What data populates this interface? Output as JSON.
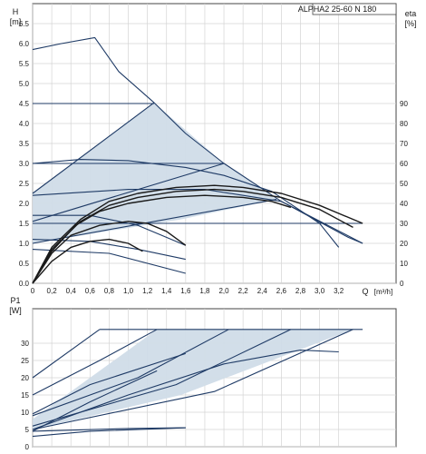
{
  "chart_data": [
    {
      "type": "line",
      "title": "ALPHA2 25-60 N 180",
      "ylabel": "H",
      "yunit": "[m]",
      "y2label": "eta",
      "y2unit": "[%]",
      "xlabel": "Q",
      "xunit": "[m³/h]",
      "xlim": [
        0,
        3.8
      ],
      "ylim": [
        0,
        7.0
      ],
      "y2lim": [
        0,
        100
      ],
      "xticks": [
        "0",
        "0,2",
        "0,4",
        "0,6",
        "0,8",
        "1,0",
        "1,2",
        "1,4",
        "1,6",
        "1,8",
        "2,0",
        "2,2",
        "2,4",
        "2,6",
        "2,8",
        "3,0",
        "3,2"
      ],
      "yticks": [
        "0.0",
        "0.5",
        "1.0",
        "1.5",
        "2.0",
        "2.5",
        "3.0",
        "3.5",
        "4.0",
        "4.5",
        "5.0",
        "5.5",
        "6.0",
        "6.5"
      ],
      "y2ticks": [
        "0",
        "10",
        "20",
        "30",
        "40",
        "50",
        "60",
        "70",
        "80",
        "90"
      ],
      "grid": true,
      "series": [
        {
          "kind": "fill",
          "color": "#d0dce8",
          "x": [
            0,
            1.27,
            2.0,
            2.55,
            1.55,
            0
          ],
          "y": [
            2.25,
            4.52,
            3.0,
            2.1,
            1.6,
            1.0
          ]
        },
        {
          "kind": "line",
          "color": "#1f3b66",
          "x": [
            0,
            0.3,
            0.65,
            0.9,
            1.27,
            1.6,
            2.0,
            2.6,
            3.3,
            3.45
          ],
          "y": [
            5.85,
            6.0,
            6.15,
            5.3,
            4.52,
            3.75,
            3.0,
            2.05,
            1.15,
            1.0
          ]
        },
        {
          "kind": "line",
          "color": "#1f3b66",
          "x": [
            0,
            1.27
          ],
          "y": [
            4.5,
            4.5
          ]
        },
        {
          "kind": "line",
          "color": "#1f3b66",
          "x": [
            0,
            1.27
          ],
          "y": [
            2.25,
            4.52
          ]
        },
        {
          "kind": "line",
          "color": "#1f3b66",
          "x": [
            0,
            2.0
          ],
          "y": [
            1.55,
            3.0
          ]
        },
        {
          "kind": "line",
          "color": "#1f3b66",
          "x": [
            0,
            2.55
          ],
          "y": [
            1.0,
            2.1
          ]
        },
        {
          "kind": "line",
          "color": "#1f3b66",
          "x": [
            0,
            3.45
          ],
          "y": [
            1.5,
            1.5
          ]
        },
        {
          "kind": "line",
          "color": "#1f3b66",
          "x": [
            0,
            2.0
          ],
          "y": [
            3.0,
            3.0
          ]
        },
        {
          "kind": "line",
          "color": "#1f3b66",
          "x": [
            0,
            0.5,
            1.0,
            1.6,
            2.0,
            2.5,
            3.0,
            3.2
          ],
          "y": [
            3.0,
            3.1,
            3.07,
            2.9,
            2.7,
            2.3,
            1.5,
            0.9
          ]
        },
        {
          "kind": "line",
          "color": "#1f3b66",
          "x": [
            0,
            1.0,
            1.8,
            2.6,
            3.45
          ],
          "y": [
            2.2,
            2.35,
            2.35,
            2.05,
            1.0
          ]
        },
        {
          "kind": "line",
          "color": "#1f3b66",
          "x": [
            0,
            0.6,
            1.1,
            1.6
          ],
          "y": [
            1.7,
            1.7,
            1.45,
            0.95
          ]
        },
        {
          "kind": "line",
          "color": "#1f3b66",
          "x": [
            0,
            0.6,
            1.1,
            1.6
          ],
          "y": [
            1.1,
            1.05,
            0.85,
            0.6
          ]
        },
        {
          "kind": "line",
          "color": "#1f3b66",
          "x": [
            0,
            0.8,
            1.6
          ],
          "y": [
            0.85,
            0.75,
            0.25
          ]
        },
        {
          "kind": "line",
          "color": "#1a1a1a",
          "x": [
            0,
            0.2,
            0.5,
            0.8,
            1.1,
            1.5,
            1.9,
            2.2,
            2.6,
            3.0,
            3.45
          ],
          "y": [
            0,
            0.9,
            1.6,
            2.05,
            2.25,
            2.4,
            2.45,
            2.4,
            2.25,
            1.95,
            1.5
          ]
        },
        {
          "kind": "line",
          "color": "#1a1a1a",
          "x": [
            0,
            0.2,
            0.5,
            0.8,
            1.1,
            1.5,
            1.9,
            2.2,
            2.6,
            3.0,
            3.35
          ],
          "y": [
            0,
            0.85,
            1.55,
            1.95,
            2.15,
            2.3,
            2.35,
            2.3,
            2.15,
            1.85,
            1.4
          ]
        },
        {
          "kind": "line",
          "color": "#1a1a1a",
          "x": [
            0,
            0.2,
            0.45,
            0.7,
            1.0,
            1.4,
            1.8,
            2.2,
            2.5,
            2.7
          ],
          "y": [
            0,
            0.8,
            1.45,
            1.8,
            2.0,
            2.15,
            2.2,
            2.15,
            2.05,
            1.9
          ]
        },
        {
          "kind": "line",
          "color": "#1a1a1a",
          "x": [
            0,
            0.2,
            0.4,
            0.7,
            1.0,
            1.2,
            1.4,
            1.6
          ],
          "y": [
            0,
            0.75,
            1.2,
            1.45,
            1.55,
            1.5,
            1.3,
            0.95
          ]
        },
        {
          "kind": "line",
          "color": "#1a1a1a",
          "x": [
            0,
            0.2,
            0.4,
            0.6,
            0.8,
            1.0,
            1.15
          ],
          "y": [
            0,
            0.55,
            0.9,
            1.05,
            1.1,
            1.0,
            0.8
          ]
        }
      ]
    },
    {
      "type": "line",
      "ylabel": "P1",
      "yunit": "[W]",
      "xlim": [
        0,
        3.8
      ],
      "ylim": [
        0,
        40
      ],
      "yticks": [
        "0",
        "5",
        "10",
        "15",
        "20",
        "25",
        "30"
      ],
      "grid": true,
      "series": [
        {
          "kind": "fill",
          "color": "#d0dce8",
          "x": [
            0,
            1.3,
            2.05,
            2.7,
            3.35,
            1.55,
            0
          ],
          "y": [
            8,
            34,
            34,
            34,
            34,
            15,
            5
          ]
        },
        {
          "kind": "line",
          "color": "#1f3b66",
          "x": [
            0.7,
            3.45
          ],
          "y": [
            34,
            34
          ]
        },
        {
          "kind": "line",
          "color": "#1f3b66",
          "x": [
            0,
            0.7
          ],
          "y": [
            20,
            34
          ]
        },
        {
          "kind": "line",
          "color": "#1f3b66",
          "x": [
            0,
            0.7,
            1.3
          ],
          "y": [
            15,
            25,
            34
          ]
        },
        {
          "kind": "line",
          "color": "#1f3b66",
          "x": [
            0,
            1.1,
            2.05
          ],
          "y": [
            9,
            20,
            34
          ]
        },
        {
          "kind": "line",
          "color": "#1f3b66",
          "x": [
            0,
            1.5,
            2.7
          ],
          "y": [
            6,
            18,
            34
          ]
        },
        {
          "kind": "line",
          "color": "#1f3b66",
          "x": [
            0,
            1.9,
            3.35
          ],
          "y": [
            5,
            16,
            34
          ]
        },
        {
          "kind": "line",
          "color": "#1f3b66",
          "x": [
            0,
            0.6,
            1.3
          ],
          "y": [
            4.5,
            13,
            22
          ]
        },
        {
          "kind": "line",
          "color": "#1f3b66",
          "x": [
            0,
            0.6,
            1.6
          ],
          "y": [
            9.5,
            18,
            27
          ]
        },
        {
          "kind": "line",
          "color": "#1f3b66",
          "x": [
            0,
            1.0,
            2.0,
            2.8,
            3.2
          ],
          "y": [
            5,
            15,
            24,
            28,
            27.5
          ]
        },
        {
          "kind": "line",
          "color": "#1f3b66",
          "x": [
            0,
            0.6,
            1.6
          ],
          "y": [
            3,
            4.5,
            5.5
          ]
        },
        {
          "kind": "line",
          "color": "#1f3b66",
          "x": [
            0,
            1.0,
            1.6
          ],
          "y": [
            4.5,
            5.3,
            5.5
          ]
        }
      ]
    }
  ]
}
